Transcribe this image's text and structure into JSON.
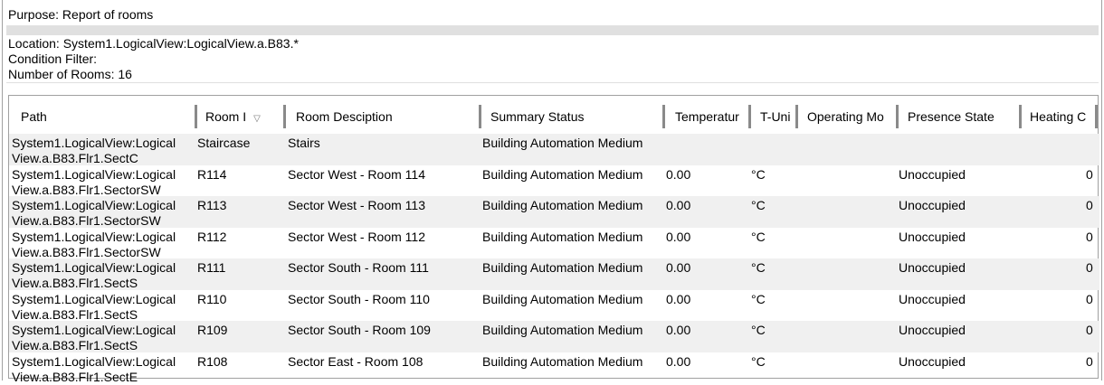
{
  "purpose": "Purpose: Report of rooms",
  "info": {
    "location": "Location: System1.LogicalView:LogicalView.a.B83.*",
    "condition": "Condition Filter:",
    "count": "Number of Rooms: 16"
  },
  "columns": [
    "Path",
    "Room I",
    "Room Desciption",
    "Summary Status",
    "Temperatur",
    "T-Uni",
    "Operating Mo",
    "Presence State",
    "Heating C"
  ],
  "sort_icon": "chevron-down-icon",
  "rows": [
    {
      "path1": "System1.LogicalView:Logical",
      "path2": "View.a.B83.Flr1.SectC",
      "room": "Staircase",
      "desc": "Stairs",
      "status": "Building Automation Medium",
      "temp": "",
      "unit": "",
      "mode": "",
      "presence": "",
      "heating": ""
    },
    {
      "path1": "System1.LogicalView:Logical",
      "path2": "View.a.B83.Flr1.SectorSW",
      "room": "R114",
      "desc": "Sector West - Room 114",
      "status": "Building Automation Medium",
      "temp": "0.00",
      "unit": "°C",
      "mode": "",
      "presence": "Unoccupied",
      "heating": "0"
    },
    {
      "path1": "System1.LogicalView:Logical",
      "path2": "View.a.B83.Flr1.SectorSW",
      "room": "R113",
      "desc": "Sector West - Room 113",
      "status": "Building Automation Medium",
      "temp": "0.00",
      "unit": "°C",
      "mode": "",
      "presence": "Unoccupied",
      "heating": "0"
    },
    {
      "path1": "System1.LogicalView:Logical",
      "path2": "View.a.B83.Flr1.SectorSW",
      "room": "R112",
      "desc": "Sector West - Room 112",
      "status": "Building Automation Medium",
      "temp": "0.00",
      "unit": "°C",
      "mode": "",
      "presence": "Unoccupied",
      "heating": "0"
    },
    {
      "path1": "System1.LogicalView:Logical",
      "path2": "View.a.B83.Flr1.SectS",
      "room": "R111",
      "desc": "Sector South - Room 111",
      "status": "Building Automation Medium",
      "temp": "0.00",
      "unit": "°C",
      "mode": "",
      "presence": "Unoccupied",
      "heating": "0"
    },
    {
      "path1": "System1.LogicalView:Logical",
      "path2": "View.a.B83.Flr1.SectS",
      "room": "R110",
      "desc": "Sector South - Room 110",
      "status": "Building Automation Medium",
      "temp": "0.00",
      "unit": "°C",
      "mode": "",
      "presence": "Unoccupied",
      "heating": "0"
    },
    {
      "path1": "System1.LogicalView:Logical",
      "path2": "View.a.B83.Flr1.SectS",
      "room": "R109",
      "desc": "Sector South - Room 109",
      "status": "Building Automation Medium",
      "temp": "0.00",
      "unit": "°C",
      "mode": "",
      "presence": "Unoccupied",
      "heating": "0"
    },
    {
      "path1": "System1.LogicalView:Logical",
      "path2": "View.a.B83.Flr1.SectE",
      "room": "R108",
      "desc": "Sector East - Room 108",
      "status": "Building Automation Medium",
      "temp": "0.00",
      "unit": "°C",
      "mode": "",
      "presence": "Unoccupied",
      "heating": "0"
    }
  ]
}
